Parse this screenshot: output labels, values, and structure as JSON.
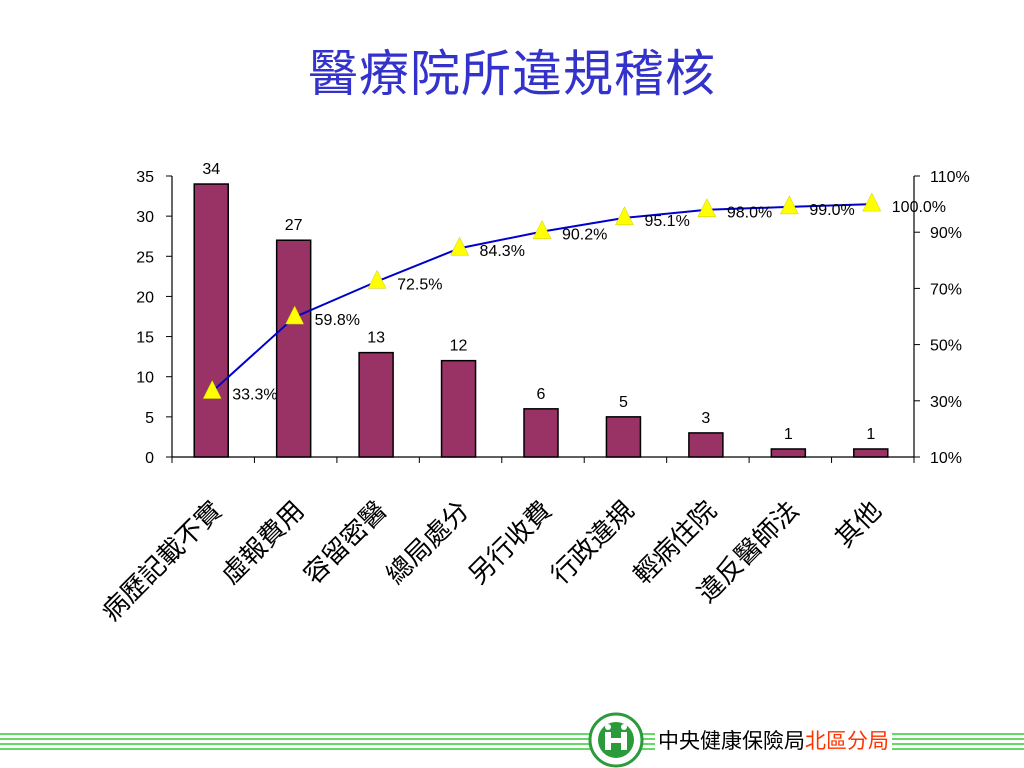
{
  "slide": {
    "title": "醫療院所違規稽核",
    "footer_main": "中央健康保險局",
    "footer_accent": "北區分局",
    "logo_icon": "nhi-logo-icon"
  },
  "colors": {
    "title": "#3333cc",
    "bar": "#993366",
    "line": "#0000cc",
    "marker": "#ffff00",
    "footer_lines": "#33cc33",
    "footer_accent": "#ff3300"
  },
  "chart_data": {
    "type": "bar",
    "categories": [
      "病歷記載不實",
      "虛報費用",
      "容留密醫",
      "總局處分",
      "另行收費",
      "行政違規",
      "輕病住院",
      "違反醫師法",
      "其他"
    ],
    "series": [
      {
        "type": "bar",
        "axis": "left",
        "values": [
          34,
          27,
          13,
          12,
          6,
          5,
          3,
          1,
          1
        ],
        "labels": [
          "34",
          "27",
          "13",
          "12",
          "6",
          "5",
          "3",
          "1",
          "1"
        ]
      },
      {
        "type": "line",
        "axis": "right",
        "marker": "triangle",
        "values": [
          33.3,
          59.8,
          72.5,
          84.3,
          90.2,
          95.1,
          98.0,
          99.0,
          100.0
        ],
        "labels": [
          "33.3%",
          "59.8%",
          "72.5%",
          "84.3%",
          "90.2%",
          "95.1%",
          "98.0%",
          "99.0%",
          "100.0%"
        ]
      }
    ],
    "y_left": {
      "min": 0,
      "max": 35,
      "ticks": [
        "0",
        "5",
        "10",
        "15",
        "20",
        "25",
        "30",
        "35"
      ]
    },
    "y_right": {
      "min": 10,
      "max": 110,
      "ticks": [
        "10%",
        "30%",
        "50%",
        "70%",
        "90%",
        "110%"
      ]
    },
    "grid": false,
    "legend": "none"
  }
}
